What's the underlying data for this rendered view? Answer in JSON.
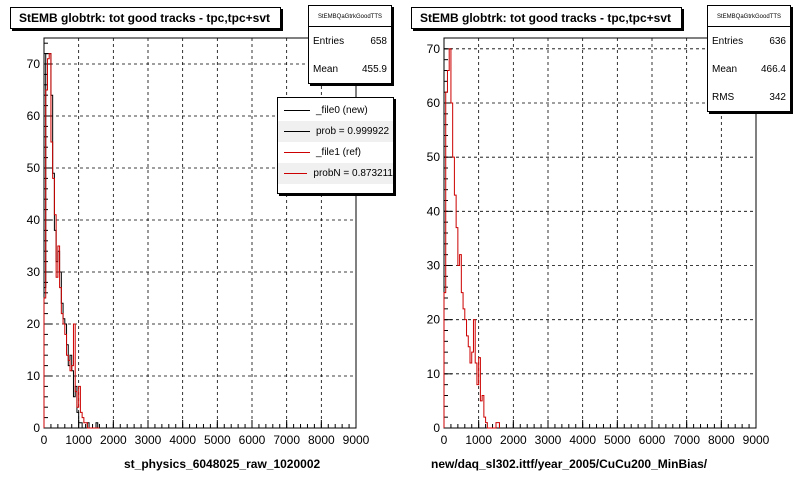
{
  "chart_data": [
    {
      "type": "histogram",
      "title": "StEMB globtrk: tot good tracks - tpc,tpc+svt",
      "xlabel": "st_physics_6048025_raw_1020002",
      "ylabel": "",
      "xlim": [
        0,
        9000
      ],
      "ylim": [
        0,
        75
      ],
      "x_ticks": [
        0,
        1000,
        2000,
        3000,
        4000,
        5000,
        6000,
        7000,
        8000,
        9000
      ],
      "y_ticks": [
        0,
        10,
        20,
        30,
        40,
        50,
        60,
        70
      ],
      "grid": true,
      "stats": {
        "name": "StEMBQaGtrkGoodTTS",
        "rows": [
          {
            "label": "Entries",
            "value": "658"
          },
          {
            "label": "Mean",
            "value": "455.9"
          }
        ]
      },
      "legend": {
        "entries": [
          {
            "label": "_file0 (new)",
            "color": "#000000"
          },
          {
            "label": "prob = 0.999922",
            "color": "#000000"
          },
          {
            "label": "_file1 (ref)",
            "color": "#cc0000"
          },
          {
            "label": "probN = 0.873211",
            "color": "#cc0000"
          }
        ]
      },
      "bin_width": 50,
      "x_start": 0,
      "series": [
        {
          "name": "_file0 (new)",
          "color": "#000000",
          "values": [
            27,
            72,
            72,
            72,
            64,
            49,
            38,
            32,
            34,
            30,
            24,
            21,
            20,
            16,
            12,
            14,
            11,
            6,
            8,
            3,
            1,
            1,
            0,
            0,
            0,
            1,
            0,
            0,
            0,
            0,
            1,
            0
          ]
        },
        {
          "name": "_file1 (ref)",
          "color": "#cc0000",
          "values": [
            25,
            65,
            71,
            72,
            55,
            48,
            41,
            29,
            35,
            27,
            22,
            20,
            18,
            14,
            13,
            11,
            12,
            20,
            7,
            4,
            8,
            3,
            2,
            1,
            1,
            0,
            0,
            0,
            0,
            0,
            0,
            0
          ]
        }
      ]
    },
    {
      "type": "histogram",
      "title": "StEMB globtrk: tot good tracks - tpc,tpc+svt",
      "xlabel": "new/daq_sl302.ittf/year_2005/CuCu200_MinBias/",
      "ylabel": "",
      "xlim": [
        0,
        9000
      ],
      "ylim": [
        0,
        72
      ],
      "x_ticks": [
        0,
        1000,
        2000,
        3000,
        4000,
        5000,
        6000,
        7000,
        8000,
        9000
      ],
      "y_ticks": [
        0,
        10,
        20,
        30,
        40,
        50,
        60,
        70
      ],
      "grid": true,
      "stats": {
        "name": "StEMBQaGtrkGoodTTS",
        "rows": [
          {
            "label": "Entries",
            "value": "636"
          },
          {
            "label": "Mean",
            "value": "466.4"
          },
          {
            "label": "RMS",
            "value": "342"
          }
        ]
      },
      "bin_width": 50,
      "x_start": 0,
      "series": [
        {
          "name": "ref",
          "color": "#cc0000",
          "values": [
            25,
            62,
            66,
            70,
            60,
            50,
            43,
            37,
            30,
            32,
            25,
            22,
            20,
            17,
            15,
            12,
            14,
            20,
            12,
            8,
            13,
            5,
            6,
            2,
            1,
            0,
            0,
            0,
            0,
            0,
            1,
            1
          ]
        }
      ]
    }
  ]
}
